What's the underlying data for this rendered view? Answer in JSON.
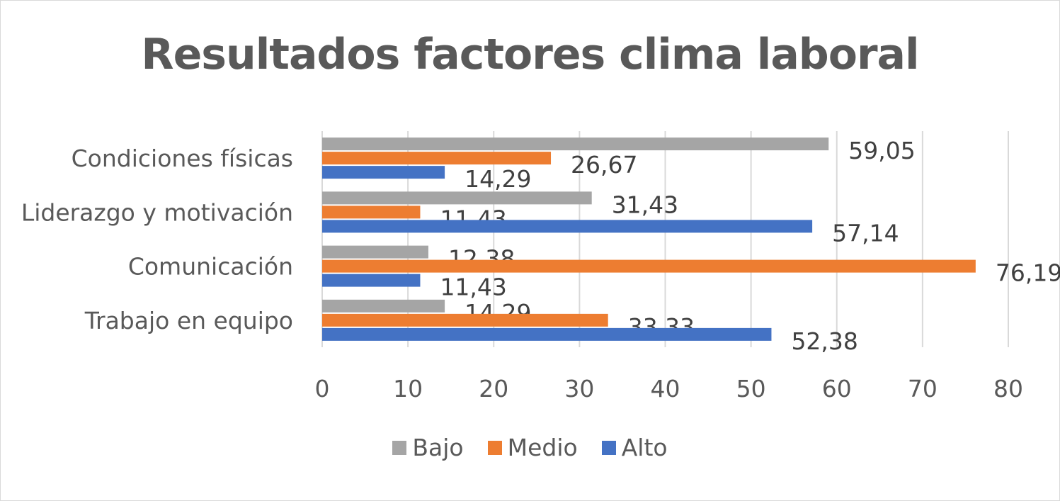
{
  "chart_data": {
    "type": "bar",
    "orientation": "horizontal",
    "title": "Resultados factores clima laboral",
    "xlabel": "",
    "ylabel": "",
    "categories": [
      "Trabajo en equipo",
      "Comunicación",
      "Liderazgo y motivación",
      "Condiciones físicas"
    ],
    "series": [
      {
        "name": "Alto",
        "color": "#4472c4",
        "values": [
          52.38,
          11.43,
          57.14,
          14.29
        ],
        "labels": [
          "52,38",
          "11,43",
          "57,14",
          "14,29"
        ]
      },
      {
        "name": "Medio",
        "color": "#ed7d31",
        "values": [
          33.33,
          76.19,
          11.43,
          26.67
        ],
        "labels": [
          "33,33",
          "76,19",
          "11,43",
          "26,67"
        ]
      },
      {
        "name": "Bajo",
        "color": "#a5a5a5",
        "values": [
          14.29,
          12.38,
          31.43,
          59.05
        ],
        "labels": [
          "14,29",
          "12,38",
          "31,43",
          "59,05"
        ]
      }
    ],
    "xlim": [
      0,
      80
    ],
    "ticks": [
      "0",
      "10",
      "20",
      "30",
      "40",
      "50",
      "60",
      "70",
      "80"
    ],
    "grid": true,
    "legend_position": "bottom",
    "legend_order": [
      "Bajo",
      "Medio",
      "Alto"
    ]
  }
}
